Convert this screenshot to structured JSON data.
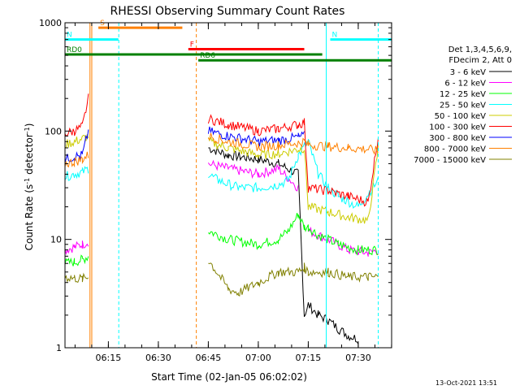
{
  "chart_data": {
    "type": "line",
    "title": "RHESSI Observing Summary Count Rates",
    "xlabel": "Start Time (02-Jan-05 06:02:02)",
    "ylabel_main": "Count Rate (s",
    "ylabel_sup": "-1",
    "ylabel_mid": " detector",
    "ylabel_end": ")",
    "yscale": "log",
    "xlim": [
      6.033,
      7.667
    ],
    "ylim": [
      1,
      1000
    ],
    "xticks": [
      {
        "t": 6.25,
        "label": "06:15"
      },
      {
        "t": 6.5,
        "label": "06:30"
      },
      {
        "t": 6.75,
        "label": "06:45"
      },
      {
        "t": 7.0,
        "label": "07:00"
      },
      {
        "t": 7.25,
        "label": "07:15"
      },
      {
        "t": 7.5,
        "label": "07:30"
      }
    ],
    "yticks": [
      {
        "v": 1,
        "label": "1"
      },
      {
        "v": 10,
        "label": "10"
      },
      {
        "v": 100,
        "label": "100"
      },
      {
        "v": 1000,
        "label": "1000"
      }
    ],
    "legend_header": [
      "Det 1,3,4,5,6,9,",
      "FDecim 2, Att 0"
    ],
    "series": [
      {
        "name": "3 - 6 keV",
        "color": "#000000",
        "x": [
          6.033,
          6.1,
          6.15,
          6.167,
          6.72,
          6.75,
          6.85,
          7.0,
          7.1,
          7.2,
          7.23,
          7.25,
          7.3,
          7.35,
          7.4,
          7.45,
          7.5
        ],
        "y": [
          null,
          null,
          null,
          null,
          null,
          70,
          60,
          55,
          50,
          40,
          2,
          2.5,
          2,
          1.8,
          1.5,
          1.3,
          1.2
        ]
      },
      {
        "name": "6 - 12 keV",
        "color": "#ff00ff",
        "x": [
          6.033,
          6.08,
          6.12,
          6.15,
          6.16,
          6.72,
          6.75,
          6.85,
          7.0,
          7.1,
          7.2,
          7.23,
          7.25,
          7.35,
          7.45,
          7.55,
          7.6
        ],
        "y": [
          8,
          8.5,
          9,
          9.5,
          null,
          null,
          50,
          45,
          40,
          45,
          30,
          null,
          12,
          10,
          8,
          7.5,
          8
        ]
      },
      {
        "name": "12 - 25 keV",
        "color": "#00ff00",
        "x": [
          6.033,
          6.08,
          6.12,
          6.15,
          6.16,
          6.72,
          6.75,
          6.85,
          7.0,
          7.1,
          7.15,
          7.2,
          7.23,
          7.25,
          7.3,
          7.4,
          7.5,
          7.6
        ],
        "y": [
          6,
          6.2,
          6.5,
          7,
          null,
          null,
          12,
          10,
          9,
          10,
          12,
          17,
          13,
          13,
          11,
          9,
          8,
          8
        ]
      },
      {
        "name": "25 - 50 keV",
        "color": "#00ffff",
        "x": [
          6.033,
          6.08,
          6.12,
          6.15,
          6.16,
          6.72,
          6.75,
          6.8,
          6.9,
          7.0,
          7.1,
          7.15,
          7.2,
          7.25,
          7.3,
          7.35,
          7.4,
          7.5,
          7.6
        ],
        "y": [
          38,
          40,
          42,
          45,
          null,
          null,
          40,
          35,
          30,
          30,
          32,
          35,
          60,
          80,
          40,
          30,
          25,
          20,
          35
        ]
      },
      {
        "name": "50 - 100 keV",
        "color": "#cccc00",
        "x": [
          6.033,
          6.08,
          6.12,
          6.15,
          6.16,
          6.72,
          6.75,
          6.85,
          7.0,
          7.1,
          7.2,
          7.23,
          7.25,
          7.35,
          7.45,
          7.55,
          7.6
        ],
        "y": [
          75,
          80,
          85,
          90,
          null,
          null,
          80,
          70,
          60,
          62,
          68,
          70,
          20,
          18,
          16,
          15,
          70
        ]
      },
      {
        "name": "100 - 300 keV",
        "color": "#ff0000",
        "x": [
          6.033,
          6.08,
          6.12,
          6.15,
          6.16,
          6.72,
          6.75,
          6.85,
          7.0,
          7.1,
          7.2,
          7.23,
          7.25,
          7.35,
          7.45,
          7.55,
          7.6
        ],
        "y": [
          95,
          100,
          110,
          200,
          null,
          null,
          130,
          115,
          100,
          105,
          115,
          120,
          30,
          28,
          25,
          22,
          90
        ]
      },
      {
        "name": "300 - 800 keV",
        "color": "#0000ff",
        "x": [
          6.033,
          6.08,
          6.12,
          6.15,
          6.16,
          6.72,
          6.75,
          6.85,
          7.0,
          7.1,
          7.2,
          7.23,
          7.25,
          7.35,
          7.45,
          7.55,
          7.6
        ],
        "y": [
          55,
          58,
          60,
          100,
          null,
          null,
          100,
          90,
          80,
          82,
          88,
          90,
          null,
          null,
          null,
          null,
          null
        ]
      },
      {
        "name": "800 - 7000 keV",
        "color": "#ff8000",
        "x": [
          6.033,
          6.08,
          6.12,
          6.15,
          6.16,
          6.72,
          6.75,
          6.85,
          7.0,
          7.1,
          7.2,
          7.23,
          7.25,
          7.35,
          7.45,
          7.55,
          7.6
        ],
        "y": [
          50,
          52,
          55,
          60,
          null,
          null,
          90,
          80,
          72,
          74,
          78,
          80,
          75,
          72,
          70,
          68,
          65
        ]
      },
      {
        "name": "7000 - 15000 keV",
        "color": "#808000",
        "x": [
          6.033,
          6.08,
          6.12,
          6.15,
          6.16,
          6.72,
          6.75,
          6.85,
          6.9,
          7.0,
          7.1,
          7.2,
          7.23,
          7.25,
          7.35,
          7.45,
          7.55,
          7.6
        ],
        "y": [
          4.5,
          4.4,
          4.3,
          4.5,
          null,
          null,
          6.5,
          3.5,
          3.2,
          4,
          5,
          5,
          5.5,
          5,
          5,
          4.5,
          4.5,
          4.5
        ]
      }
    ],
    "flags": [
      {
        "label": "S",
        "color": "#ff8000",
        "y": 900,
        "x0": 6.2,
        "x1": 6.62
      },
      {
        "label": "N",
        "color": "#00ffff",
        "y": 700,
        "x0": 6.033,
        "x1": 6.3
      },
      {
        "label": "N",
        "color": "#00ffff",
        "y": 700,
        "x0": 7.36,
        "x1": 7.667
      },
      {
        "label": "F",
        "color": "#ff0000",
        "y": 570,
        "x0": 6.65,
        "x1": 7.23
      },
      {
        "label": "RD0",
        "color": "#008000",
        "y": 510,
        "x0": 6.033,
        "x1": 7.32
      },
      {
        "label": "RD6",
        "color": "#008000",
        "y": 450,
        "x0": 6.7,
        "x1": 7.667
      }
    ],
    "vlines": [
      {
        "t": 6.158,
        "color": "#ff8000",
        "dash": false
      },
      {
        "t": 6.167,
        "color": "#ff8000",
        "dash": false
      },
      {
        "t": 6.302,
        "color": "#00ffff",
        "dash": true
      },
      {
        "t": 6.69,
        "color": "#ff8000",
        "dash": true
      },
      {
        "t": 7.34,
        "color": "#00ffff",
        "dash": false
      },
      {
        "t": 7.6,
        "color": "#00ffff",
        "dash": true
      }
    ],
    "timestamp": "13-Oct-2021 13:51"
  }
}
